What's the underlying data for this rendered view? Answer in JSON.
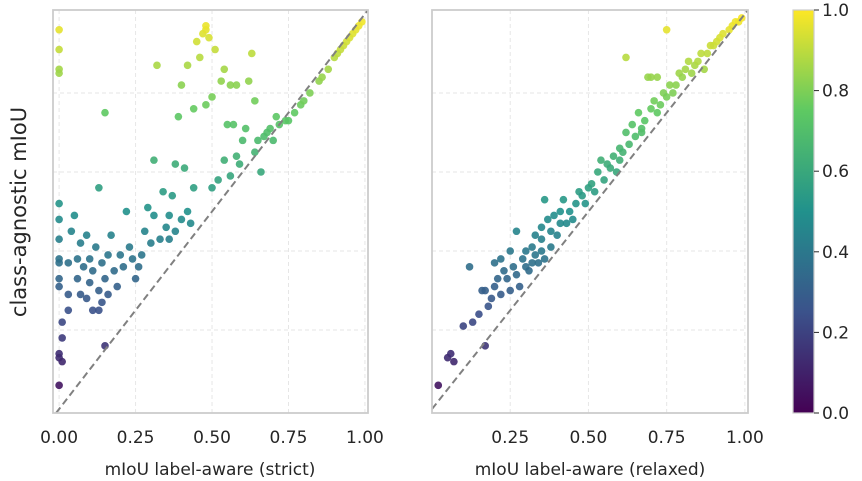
{
  "chart_data": {
    "type": "scatter",
    "shared_ylabel": "class-agnostic mIoU",
    "colormap": "viridis",
    "colormap_stops": [
      "#440154",
      "#3b528b",
      "#21918c",
      "#5ec962",
      "#fde725"
    ],
    "diagonal_color": "#808080",
    "panels": [
      {
        "xlabel": "mIoU label-aware (strict)",
        "xlim": [
          -0.02,
          1.01
        ],
        "ylim": [
          -0.01,
          1.01
        ],
        "xticks": [
          0.0,
          0.25,
          0.5,
          0.75,
          1.0
        ],
        "xtick_labels": [
          "0.00",
          "0.25",
          "0.50",
          "0.75",
          "1.00"
        ],
        "points": [
          [
            0.0,
            0.96
          ],
          [
            0.0,
            0.91
          ],
          [
            0.0,
            0.86
          ],
          [
            0.0,
            0.85
          ],
          [
            0.0,
            0.52
          ],
          [
            0.0,
            0.48
          ],
          [
            0.0,
            0.43
          ],
          [
            0.0,
            0.38
          ],
          [
            0.0,
            0.37
          ],
          [
            0.0,
            0.33
          ],
          [
            0.0,
            0.31
          ],
          [
            0.0,
            0.14
          ],
          [
            0.0,
            0.13
          ],
          [
            0.0,
            0.06
          ],
          [
            0.01,
            0.22
          ],
          [
            0.01,
            0.18
          ],
          [
            0.01,
            0.12
          ],
          [
            0.03,
            0.25
          ],
          [
            0.03,
            0.29
          ],
          [
            0.03,
            0.37
          ],
          [
            0.04,
            0.45
          ],
          [
            0.05,
            0.49
          ],
          [
            0.06,
            0.38
          ],
          [
            0.06,
            0.33
          ],
          [
            0.07,
            0.29
          ],
          [
            0.07,
            0.42
          ],
          [
            0.08,
            0.36
          ],
          [
            0.09,
            0.28
          ],
          [
            0.09,
            0.44
          ],
          [
            0.1,
            0.32
          ],
          [
            0.1,
            0.38
          ],
          [
            0.11,
            0.25
          ],
          [
            0.11,
            0.35
          ],
          [
            0.12,
            0.41
          ],
          [
            0.13,
            0.25
          ],
          [
            0.13,
            0.3
          ],
          [
            0.13,
            0.56
          ],
          [
            0.14,
            0.27
          ],
          [
            0.14,
            0.37
          ],
          [
            0.15,
            0.33
          ],
          [
            0.15,
            0.75
          ],
          [
            0.15,
            0.16
          ],
          [
            0.16,
            0.39
          ],
          [
            0.16,
            0.29
          ],
          [
            0.17,
            0.44
          ],
          [
            0.18,
            0.35
          ],
          [
            0.19,
            0.31
          ],
          [
            0.2,
            0.39
          ],
          [
            0.21,
            0.36
          ],
          [
            0.22,
            0.5
          ],
          [
            0.23,
            0.41
          ],
          [
            0.24,
            0.38
          ],
          [
            0.25,
            0.33
          ],
          [
            0.26,
            0.36
          ],
          [
            0.27,
            0.39
          ],
          [
            0.28,
            0.45
          ],
          [
            0.29,
            0.51
          ],
          [
            0.3,
            0.42
          ],
          [
            0.31,
            0.49
          ],
          [
            0.31,
            0.63
          ],
          [
            0.32,
            0.87
          ],
          [
            0.33,
            0.43
          ],
          [
            0.34,
            0.55
          ],
          [
            0.35,
            0.46
          ],
          [
            0.36,
            0.49
          ],
          [
            0.36,
            0.43
          ],
          [
            0.37,
            0.54
          ],
          [
            0.38,
            0.45
          ],
          [
            0.38,
            0.62
          ],
          [
            0.39,
            0.74
          ],
          [
            0.4,
            0.48
          ],
          [
            0.4,
            0.82
          ],
          [
            0.41,
            0.61
          ],
          [
            0.42,
            0.5
          ],
          [
            0.42,
            0.87
          ],
          [
            0.43,
            0.47
          ],
          [
            0.44,
            0.56
          ],
          [
            0.44,
            0.76
          ],
          [
            0.45,
            0.93
          ],
          [
            0.46,
            0.89
          ],
          [
            0.47,
            0.95
          ],
          [
            0.48,
            0.96
          ],
          [
            0.48,
            0.77
          ],
          [
            0.48,
            0.97
          ],
          [
            0.49,
            0.94
          ],
          [
            0.5,
            0.56
          ],
          [
            0.5,
            0.79
          ],
          [
            0.51,
            0.91
          ],
          [
            0.52,
            0.58
          ],
          [
            0.53,
            0.83
          ],
          [
            0.54,
            0.63
          ],
          [
            0.54,
            0.86
          ],
          [
            0.55,
            0.72
          ],
          [
            0.56,
            0.59
          ],
          [
            0.56,
            0.82
          ],
          [
            0.57,
            0.72
          ],
          [
            0.58,
            0.64
          ],
          [
            0.58,
            0.82
          ],
          [
            0.59,
            0.62
          ],
          [
            0.6,
            0.68
          ],
          [
            0.61,
            0.71
          ],
          [
            0.62,
            0.83
          ],
          [
            0.63,
            0.9
          ],
          [
            0.64,
            0.78
          ],
          [
            0.64,
            0.65
          ],
          [
            0.65,
            0.68
          ],
          [
            0.66,
            0.6
          ],
          [
            0.67,
            0.69
          ],
          [
            0.68,
            0.7
          ],
          [
            0.69,
            0.71
          ],
          [
            0.7,
            0.68
          ],
          [
            0.71,
            0.74
          ],
          [
            0.72,
            0.72
          ],
          [
            0.74,
            0.73
          ],
          [
            0.75,
            0.73
          ],
          [
            0.77,
            0.75
          ],
          [
            0.79,
            0.77
          ],
          [
            0.8,
            0.78
          ],
          [
            0.82,
            0.8
          ],
          [
            0.85,
            0.83
          ],
          [
            0.86,
            0.84
          ],
          [
            0.88,
            0.86
          ],
          [
            0.9,
            0.89
          ],
          [
            0.91,
            0.9
          ],
          [
            0.92,
            0.91
          ],
          [
            0.93,
            0.92
          ],
          [
            0.94,
            0.93
          ],
          [
            0.95,
            0.94
          ],
          [
            0.96,
            0.95
          ],
          [
            0.97,
            0.96
          ],
          [
            0.98,
            0.97
          ],
          [
            0.99,
            0.98
          ]
        ]
      },
      {
        "xlabel": "mIoU label-aware (relaxed)",
        "xlim": [
          0.0,
          1.01
        ],
        "ylim": [
          -0.01,
          1.01
        ],
        "xticks": [
          0.25,
          0.5,
          0.75,
          1.0
        ],
        "xtick_labels": [
          "0.25",
          "0.50",
          "0.75",
          "1.00"
        ],
        "points": [
          [
            0.02,
            0.06
          ],
          [
            0.05,
            0.13
          ],
          [
            0.06,
            0.14
          ],
          [
            0.07,
            0.12
          ],
          [
            0.1,
            0.21
          ],
          [
            0.12,
            0.36
          ],
          [
            0.13,
            0.22
          ],
          [
            0.15,
            0.24
          ],
          [
            0.16,
            0.3
          ],
          [
            0.17,
            0.16
          ],
          [
            0.17,
            0.3
          ],
          [
            0.18,
            0.26
          ],
          [
            0.19,
            0.28
          ],
          [
            0.2,
            0.31
          ],
          [
            0.2,
            0.37
          ],
          [
            0.21,
            0.33
          ],
          [
            0.22,
            0.38
          ],
          [
            0.22,
            0.29
          ],
          [
            0.23,
            0.35
          ],
          [
            0.24,
            0.33
          ],
          [
            0.25,
            0.4
          ],
          [
            0.25,
            0.3
          ],
          [
            0.26,
            0.36
          ],
          [
            0.27,
            0.34
          ],
          [
            0.27,
            0.45
          ],
          [
            0.28,
            0.31
          ],
          [
            0.29,
            0.38
          ],
          [
            0.3,
            0.36
          ],
          [
            0.3,
            0.4
          ],
          [
            0.31,
            0.35
          ],
          [
            0.32,
            0.41
          ],
          [
            0.32,
            0.37
          ],
          [
            0.33,
            0.44
          ],
          [
            0.33,
            0.39
          ],
          [
            0.34,
            0.37
          ],
          [
            0.35,
            0.4
          ],
          [
            0.35,
            0.43
          ],
          [
            0.35,
            0.46
          ],
          [
            0.36,
            0.53
          ],
          [
            0.36,
            0.38
          ],
          [
            0.37,
            0.48
          ],
          [
            0.38,
            0.45
          ],
          [
            0.38,
            0.41
          ],
          [
            0.39,
            0.49
          ],
          [
            0.4,
            0.44
          ],
          [
            0.41,
            0.5
          ],
          [
            0.41,
            0.47
          ],
          [
            0.42,
            0.53
          ],
          [
            0.43,
            0.47
          ],
          [
            0.44,
            0.5
          ],
          [
            0.45,
            0.48
          ],
          [
            0.46,
            0.52
          ],
          [
            0.47,
            0.55
          ],
          [
            0.48,
            0.54
          ],
          [
            0.49,
            0.52
          ],
          [
            0.5,
            0.56
          ],
          [
            0.51,
            0.57
          ],
          [
            0.52,
            0.55
          ],
          [
            0.53,
            0.6
          ],
          [
            0.54,
            0.63
          ],
          [
            0.55,
            0.58
          ],
          [
            0.56,
            0.62
          ],
          [
            0.57,
            0.61
          ],
          [
            0.58,
            0.64
          ],
          [
            0.59,
            0.6
          ],
          [
            0.6,
            0.66
          ],
          [
            0.6,
            0.63
          ],
          [
            0.61,
            0.65
          ],
          [
            0.62,
            0.7
          ],
          [
            0.62,
            0.89
          ],
          [
            0.63,
            0.67
          ],
          [
            0.64,
            0.72
          ],
          [
            0.65,
            0.69
          ],
          [
            0.66,
            0.75
          ],
          [
            0.67,
            0.7
          ],
          [
            0.67,
            0.71
          ],
          [
            0.68,
            0.73
          ],
          [
            0.69,
            0.84
          ],
          [
            0.7,
            0.76
          ],
          [
            0.7,
            0.84
          ],
          [
            0.71,
            0.78
          ],
          [
            0.72,
            0.75
          ],
          [
            0.72,
            0.84
          ],
          [
            0.73,
            0.77
          ],
          [
            0.74,
            0.8
          ],
          [
            0.75,
            0.79
          ],
          [
            0.75,
            0.96
          ],
          [
            0.76,
            0.82
          ],
          [
            0.77,
            0.8
          ],
          [
            0.78,
            0.82
          ],
          [
            0.79,
            0.85
          ],
          [
            0.8,
            0.84
          ],
          [
            0.81,
            0.86
          ],
          [
            0.82,
            0.88
          ],
          [
            0.83,
            0.85
          ],
          [
            0.84,
            0.87
          ],
          [
            0.85,
            0.88
          ],
          [
            0.86,
            0.9
          ],
          [
            0.87,
            0.86
          ],
          [
            0.88,
            0.9
          ],
          [
            0.89,
            0.92
          ],
          [
            0.9,
            0.92
          ],
          [
            0.91,
            0.93
          ],
          [
            0.92,
            0.94
          ],
          [
            0.93,
            0.95
          ],
          [
            0.95,
            0.96
          ],
          [
            0.96,
            0.97
          ],
          [
            0.97,
            0.98
          ],
          [
            0.98,
            0.98
          ],
          [
            0.99,
            0.99
          ]
        ]
      }
    ],
    "colorbar": {
      "range": [
        0.0,
        1.0
      ],
      "ticks": [
        0.0,
        0.2,
        0.4,
        0.6,
        0.8,
        1.0
      ],
      "tick_labels": [
        "0.0",
        "0.2",
        "0.4",
        "0.6",
        "0.8",
        "1.0"
      ]
    }
  }
}
